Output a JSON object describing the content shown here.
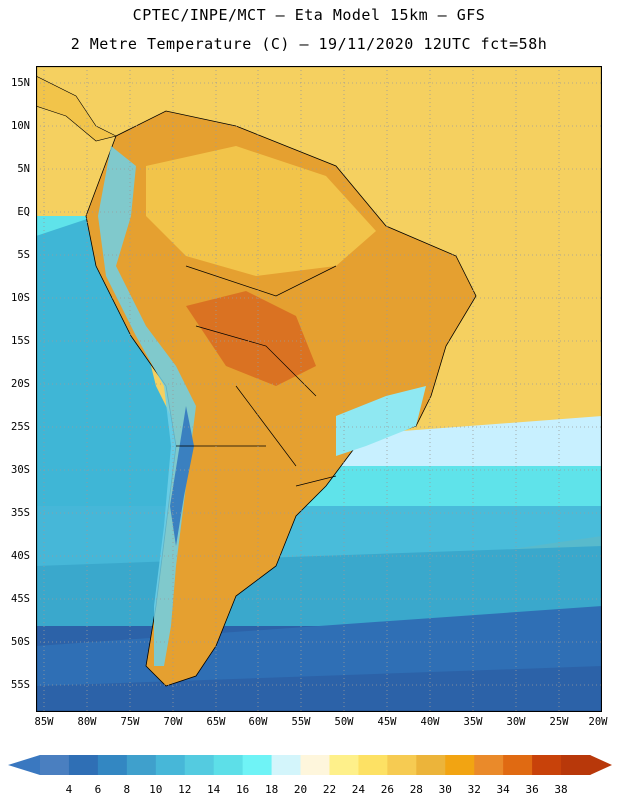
{
  "header": {
    "line1": "CPTEC/INPE/MCT –  Eta Model 15km – GFS",
    "line2": "2 Metre Temperature (C) – 19/11/2020 12UTC fct=58h"
  },
  "map": {
    "lat_labels": [
      "15N",
      "10N",
      "5N",
      "EQ",
      "5S",
      "10S",
      "15S",
      "20S",
      "25S",
      "30S",
      "35S",
      "40S",
      "45S",
      "50S",
      "55S"
    ],
    "lon_labels": [
      "85W",
      "80W",
      "75W",
      "70W",
      "65W",
      "60W",
      "55W",
      "50W",
      "45W",
      "40W",
      "35W",
      "30W",
      "25W",
      "20W"
    ],
    "colors": {
      "ocean_tropical": "#f5d060",
      "ocean_subtropical": "#c8f0ff",
      "ocean_cool": "#5fe3ea",
      "ocean_cold": "#3aa8cc",
      "ocean_polar": "#2c62a8",
      "land_hot": "#e5a030",
      "land_very_hot": "#d86a20",
      "andes": "#3a80c0",
      "border": "#000000",
      "grid": "#999999"
    }
  },
  "legend": {
    "levels": [
      "4",
      "6",
      "8",
      "10",
      "12",
      "14",
      "16",
      "18",
      "20",
      "22",
      "24",
      "26",
      "28",
      "30",
      "32",
      "34",
      "36",
      "38"
    ],
    "colors": [
      "#4a7fc0",
      "#2f6fb5",
      "#3387c2",
      "#3fa0cc",
      "#47b7d8",
      "#54cbe0",
      "#5ddfe8",
      "#6ff3f6",
      "#d3f5fb",
      "#fef6dc",
      "#fef08a",
      "#fde164",
      "#f6cb52",
      "#ecb43a",
      "#f2a412",
      "#ea8a2a",
      "#e06a12",
      "#c8420a",
      "#b8380a"
    ],
    "end_low_color": "#3a78c0",
    "end_high_color": "#b8380a"
  }
}
